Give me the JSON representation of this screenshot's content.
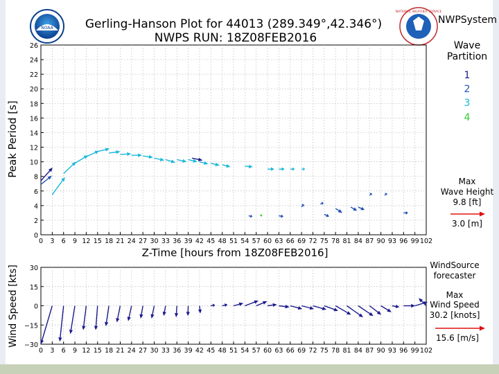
{
  "page": {
    "org_label": "NWPSystem",
    "noaa_logo_text": "NOAA",
    "nws_logo_text": "NATIONAL WEATHER SERVICE"
  },
  "legend": {
    "title_line1": "Wave",
    "title_line2": "Partition",
    "partitions": [
      {
        "label": "1",
        "color": "#1a1a8c"
      },
      {
        "label": "2",
        "color": "#1f4fb5"
      },
      {
        "label": "3",
        "color": "#19b8d8"
      },
      {
        "label": "4",
        "color": "#2fd12f"
      }
    ],
    "max_wave_height_line1": "Max",
    "max_wave_height_line2": "Wave Height",
    "max_wave_height_ft": "9.8 [ft]",
    "max_wave_height_m": "3.0 [m]",
    "wind_source_line1": "WindSource",
    "wind_source_line2": "forecaster",
    "max_wind_line1": "Max",
    "max_wind_line2": "Wind Speed",
    "max_wind_knots": "30.2 [knots]",
    "max_wind_ms": "15.6 [m/s]"
  },
  "chart_data": [
    {
      "type": "vector",
      "title": "Gerling-Hanson Plot for 44013 (289.349°,42.346°)",
      "subtitle": "NWPS RUN: 18Z08FEB2016",
      "xlabel": "Z-Time [hours from 18Z08FEB2016]",
      "ylabel": "Peak Period [s]",
      "xlim": [
        0,
        102
      ],
      "ylim": [
        0,
        26
      ],
      "xticks": [
        0,
        3,
        6,
        9,
        12,
        15,
        18,
        21,
        24,
        27,
        30,
        33,
        36,
        39,
        42,
        45,
        48,
        51,
        54,
        57,
        60,
        63,
        66,
        69,
        72,
        75,
        78,
        81,
        84,
        87,
        90,
        93,
        96,
        99,
        102
      ],
      "yticks": [
        0,
        2,
        4,
        6,
        8,
        10,
        12,
        14,
        16,
        18,
        20,
        22,
        24,
        26
      ],
      "grid": true,
      "arrow_data_units": "x: hours, y: seconds; dx, dy give the arrow tip offset in data units",
      "vectors": [
        {
          "x": 0,
          "y": 7.4,
          "dx": 3.1,
          "dy": 1.8,
          "partition": 1
        },
        {
          "x": 0,
          "y": 6.9,
          "dx": 2.9,
          "dy": 1.2,
          "partition": 2
        },
        {
          "x": 3,
          "y": 5.5,
          "dx": 3.4,
          "dy": 2.4,
          "partition": 3
        },
        {
          "x": 6,
          "y": 8.4,
          "dx": 3.3,
          "dy": 1.6,
          "partition": 3
        },
        {
          "x": 9,
          "y": 9.8,
          "dx": 3.5,
          "dy": 1.1,
          "partition": 3
        },
        {
          "x": 12,
          "y": 10.7,
          "dx": 3.4,
          "dy": 0.8,
          "partition": 3
        },
        {
          "x": 15,
          "y": 11.4,
          "dx": 3.2,
          "dy": 0.4,
          "partition": 3
        },
        {
          "x": 18,
          "y": 11.2,
          "dx": 3.0,
          "dy": 0.2,
          "partition": 3
        },
        {
          "x": 21,
          "y": 11.0,
          "dx": 2.9,
          "dy": 0.1,
          "partition": 3
        },
        {
          "x": 24,
          "y": 10.9,
          "dx": 2.8,
          "dy": 0.0,
          "partition": 3
        },
        {
          "x": 27,
          "y": 10.8,
          "dx": 2.7,
          "dy": -0.2,
          "partition": 3
        },
        {
          "x": 30,
          "y": 10.5,
          "dx": 2.7,
          "dy": -0.3,
          "partition": 3
        },
        {
          "x": 33,
          "y": 10.3,
          "dx": 2.6,
          "dy": -0.4,
          "partition": 3
        },
        {
          "x": 36,
          "y": 10.3,
          "dx": 2.6,
          "dy": -0.3,
          "partition": 3
        },
        {
          "x": 39,
          "y": 10.3,
          "dx": 2.4,
          "dy": -0.3,
          "partition": 3
        },
        {
          "x": 40,
          "y": 10.5,
          "dx": 2.8,
          "dy": -0.3,
          "partition": 1
        },
        {
          "x": 42,
          "y": 10.0,
          "dx": 2.3,
          "dy": -0.3,
          "partition": 3
        },
        {
          "x": 45,
          "y": 9.8,
          "dx": 2.3,
          "dy": -0.3,
          "partition": 3
        },
        {
          "x": 48,
          "y": 9.6,
          "dx": 2.2,
          "dy": -0.3,
          "partition": 3
        },
        {
          "x": 54,
          "y": 9.4,
          "dx": 2.1,
          "dy": -0.1,
          "partition": 3
        },
        {
          "x": 60,
          "y": 9.0,
          "dx": 1.8,
          "dy": 0.0,
          "partition": 3
        },
        {
          "x": 63,
          "y": 9.0,
          "dx": 1.5,
          "dy": 0.0,
          "partition": 3
        },
        {
          "x": 66,
          "y": 9.0,
          "dx": 1.2,
          "dy": 0.0,
          "partition": 3
        },
        {
          "x": 69,
          "y": 9.0,
          "dx": 0.9,
          "dy": 0.0,
          "partition": 3
        },
        {
          "x": 55,
          "y": 2.6,
          "dx": 1.0,
          "dy": -0.1,
          "partition": 2
        },
        {
          "x": 58,
          "y": 2.6,
          "dx": 0.6,
          "dy": 0.1,
          "partition": 4
        },
        {
          "x": 63,
          "y": 2.6,
          "dx": 1.2,
          "dy": -0.1,
          "partition": 2
        },
        {
          "x": 69,
          "y": 3.8,
          "dx": 0.6,
          "dy": 0.4,
          "partition": 2
        },
        {
          "x": 74,
          "y": 4.2,
          "dx": 0.8,
          "dy": 0.2,
          "partition": 2
        },
        {
          "x": 75,
          "y": 2.8,
          "dx": 1.3,
          "dy": -0.3,
          "partition": 2
        },
        {
          "x": 78,
          "y": 3.6,
          "dx": 1.8,
          "dy": -0.6,
          "partition": 2
        },
        {
          "x": 82,
          "y": 3.8,
          "dx": 1.7,
          "dy": -0.5,
          "partition": 2
        },
        {
          "x": 84,
          "y": 3.8,
          "dx": 1.7,
          "dy": -0.4,
          "partition": 2
        },
        {
          "x": 87,
          "y": 5.4,
          "dx": 0.6,
          "dy": 0.3,
          "partition": 2
        },
        {
          "x": 91,
          "y": 5.4,
          "dx": 0.6,
          "dy": 0.3,
          "partition": 2
        },
        {
          "x": 96,
          "y": 3.0,
          "dx": 1.2,
          "dy": 0.0,
          "partition": 2
        }
      ]
    },
    {
      "type": "vector",
      "xlabel": "",
      "ylabel": "Wind Speed [kts]",
      "xlim": [
        0,
        102
      ],
      "ylim": [
        -30,
        30
      ],
      "xticks": [
        0,
        3,
        6,
        9,
        12,
        15,
        18,
        21,
        24,
        27,
        30,
        33,
        36,
        39,
        42,
        45,
        48,
        51,
        54,
        57,
        60,
        63,
        66,
        69,
        72,
        75,
        78,
        81,
        84,
        87,
        90,
        93,
        96,
        99,
        102
      ],
      "yticks": [
        30,
        15,
        0,
        -15,
        -30
      ],
      "grid": true,
      "arrow_data_units": "x: hours, y: knots; dx, dy give the arrow tip offset in data units",
      "vectors": [
        {
          "x": 3,
          "y": 0,
          "dx": -3.0,
          "dy": -30.0
        },
        {
          "x": 6,
          "y": 0,
          "dx": -1.0,
          "dy": -28.0
        },
        {
          "x": 9,
          "y": 0,
          "dx": -1.2,
          "dy": -22.0
        },
        {
          "x": 12,
          "y": 0,
          "dx": -0.8,
          "dy": -19.0
        },
        {
          "x": 15,
          "y": 0,
          "dx": -0.5,
          "dy": -19.0
        },
        {
          "x": 18,
          "y": 0,
          "dx": -0.8,
          "dy": -16.0
        },
        {
          "x": 21,
          "y": 0,
          "dx": -0.9,
          "dy": -13.0
        },
        {
          "x": 24,
          "y": 0,
          "dx": -0.9,
          "dy": -12.0
        },
        {
          "x": 27,
          "y": 0,
          "dx": -0.6,
          "dy": -10.0
        },
        {
          "x": 30,
          "y": 0,
          "dx": -0.7,
          "dy": -10.0
        },
        {
          "x": 33,
          "y": 0,
          "dx": -0.5,
          "dy": -8.0
        },
        {
          "x": 36,
          "y": 0,
          "dx": -0.2,
          "dy": -9.0
        },
        {
          "x": 39,
          "y": 0,
          "dx": -0.1,
          "dy": -8.0
        },
        {
          "x": 42,
          "y": 0,
          "dx": 0.2,
          "dy": -6.0
        },
        {
          "x": 45,
          "y": 0,
          "dx": 1.1,
          "dy": 0.6
        },
        {
          "x": 48,
          "y": 0,
          "dx": 1.4,
          "dy": 1.0
        },
        {
          "x": 51,
          "y": 0,
          "dx": 2.6,
          "dy": 2.0
        },
        {
          "x": 54,
          "y": 0,
          "dx": 3.6,
          "dy": 4.0
        },
        {
          "x": 57,
          "y": 0,
          "dx": 2.9,
          "dy": 3.5
        },
        {
          "x": 60,
          "y": 0,
          "dx": 2.5,
          "dy": 1.0
        },
        {
          "x": 63,
          "y": 0,
          "dx": 2.8,
          "dy": -1.0
        },
        {
          "x": 66,
          "y": 0,
          "dx": 3.2,
          "dy": -2.5
        },
        {
          "x": 69,
          "y": 0,
          "dx": 3.3,
          "dy": -2.5
        },
        {
          "x": 72,
          "y": 0,
          "dx": 3.6,
          "dy": -3.0
        },
        {
          "x": 75,
          "y": 0,
          "dx": 3.7,
          "dy": -4.0
        },
        {
          "x": 78,
          "y": 0,
          "dx": 4.1,
          "dy": -7.0
        },
        {
          "x": 81,
          "y": 0,
          "dx": 4.3,
          "dy": -9.0
        },
        {
          "x": 84,
          "y": 0,
          "dx": 4.0,
          "dy": -8.0
        },
        {
          "x": 87,
          "y": 0,
          "dx": 3.1,
          "dy": -7.0
        },
        {
          "x": 90,
          "y": 0,
          "dx": 2.8,
          "dy": -5.0
        },
        {
          "x": 93,
          "y": 0,
          "dx": 1.9,
          "dy": -1.0
        },
        {
          "x": 96,
          "y": 0,
          "dx": 3.1,
          "dy": 0.0
        },
        {
          "x": 99,
          "y": 0,
          "dx": 3.4,
          "dy": 3.0
        },
        {
          "x": 102,
          "y": 0,
          "dx": -2.0,
          "dy": 6.0
        }
      ]
    }
  ]
}
